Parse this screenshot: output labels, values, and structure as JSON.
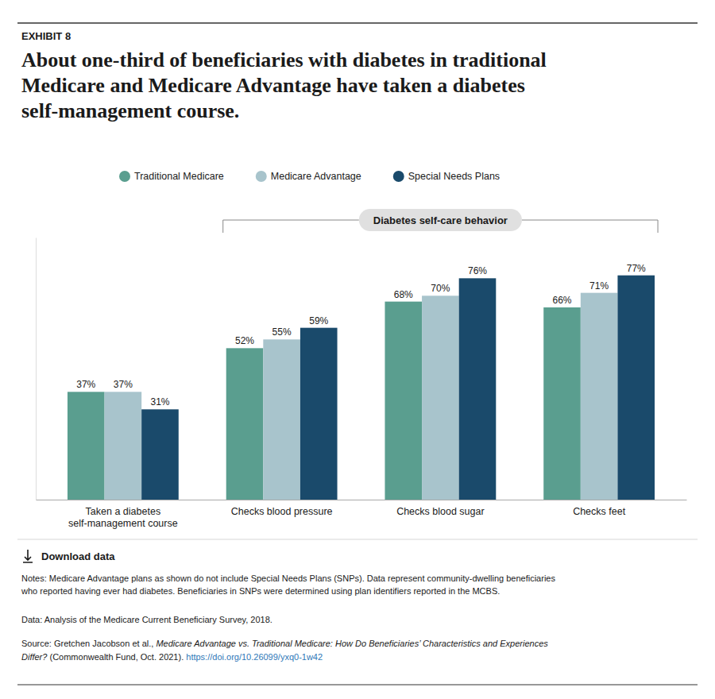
{
  "chart_data": {
    "type": "bar",
    "title": "About one-third of beneficiaries with diabetes in traditional\nMedicare and Medicare Advantage have taken a diabetes\nself-management course.",
    "categories": [
      "Taken a diabetes\nself-management course",
      "Checks blood pressure",
      "Checks blood sugar",
      "Checks feet"
    ],
    "series": [
      {
        "name": "Traditional Medicare",
        "color": "#5a9e8f",
        "values": [
          37,
          52,
          68,
          66
        ],
        "value_labels": [
          "37%",
          "52%",
          "68%",
          "66%"
        ]
      },
      {
        "name": "Medicare Advantage",
        "color": "#a8c4cc",
        "values": [
          37,
          55,
          70,
          71
        ],
        "value_labels": [
          "37%",
          "55%",
          "70%",
          "71%"
        ]
      },
      {
        "name": "Special Needs Plans",
        "color": "#1a4a6b",
        "values": [
          31,
          59,
          76,
          77
        ],
        "value_labels": [
          "31%",
          "59%",
          "76%",
          "77%"
        ]
      }
    ],
    "ylim": [
      0,
      90
    ],
    "data_labels": true,
    "tick_labels": "x",
    "grid": false,
    "legend": "top",
    "annotations": [
      "EXHIBIT 8",
      "Diabetes self-care behavior",
      "Download data",
      "Notes: Medicare Advantage plans as shown do not include Special Needs Plans (SNPs). Data represent community-dwelling beneficiaries\nwho reported having ever had diabetes. Beneficiaries in SNPs were determined using plan identifiers reported in the MCBS.",
      "Data: Analysis of the Medicare Current Beneficiary Survey, 2018.",
      "Source: Gretchen Jacobson et al., ",
      "Medicare Advantage vs. Traditional Medicare: How Do Beneficiaries’ Characteristics and Experiences\nDiffer?",
      " (Commonwealth Fund, Oct. 2021). ",
      "https://doi.org/10.26099/yxq0-1w42"
    ]
  }
}
